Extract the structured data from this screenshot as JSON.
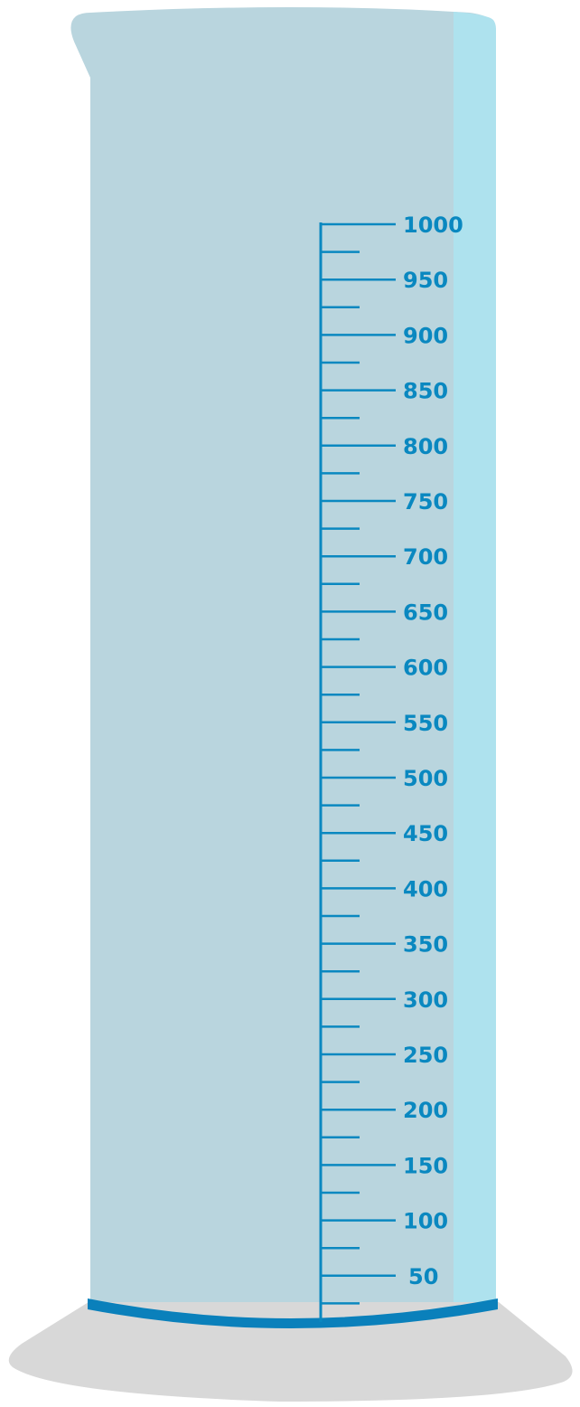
{
  "cylinder": {
    "scale_labels": [
      "1000",
      "950",
      "900",
      "850",
      "800",
      "750",
      "700",
      "650",
      "600",
      "550",
      "500",
      "450",
      "400",
      "350",
      "300",
      "250",
      "200",
      "150",
      "100",
      "50"
    ]
  },
  "colors": {
    "glass_body": "#b9d5de",
    "glass_highlight": "#aee2ee",
    "scale_ink": "#0a88c0",
    "base_band": "#0a80bb",
    "base_shadow": "#d8d8d8",
    "background": "#ffffff"
  }
}
